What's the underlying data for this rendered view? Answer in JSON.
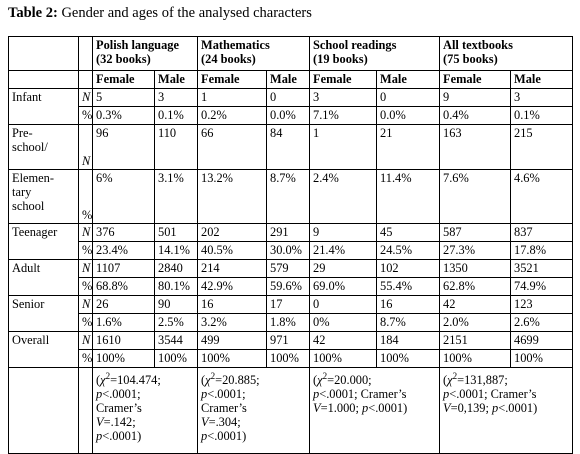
{
  "caption": {
    "label": "Table 2:",
    "text": " Gender and ages of the analysed characters"
  },
  "header": {
    "groups": [
      {
        "line1": "Polish language",
        "line2": "(32 books)"
      },
      {
        "line1": "Mathematics",
        "line2": "(24 books)"
      },
      {
        "line1": "School readings",
        "line2": "(19 books)"
      },
      {
        "line1": "All textbooks",
        "line2": "(75 books)"
      }
    ],
    "female": "Female",
    "male": "Male"
  },
  "rows": [
    {
      "label": "Infant",
      "n_mark": "N",
      "n": [
        "5",
        "3",
        "1",
        "0",
        "3",
        "0",
        "9",
        "3"
      ],
      "pct_mark": "%",
      "pct": [
        "0.3%",
        "0.1%",
        "0.2%",
        "0.0%",
        "7.1%",
        "0.0%",
        "0.4%",
        "0.1%"
      ]
    },
    {
      "label_a": "Pre-",
      "label_b": "school/",
      "label_c": "Elemen-",
      "label_d": "tary",
      "label_e": "school",
      "n_mark": "N",
      "n": [
        "96",
        "110",
        "66",
        "84",
        "1",
        "21",
        "163",
        "215"
      ],
      "pct_mark": "%",
      "pct": [
        "6%",
        "3.1%",
        "13.2%",
        "8.7%",
        "2.4%",
        "11.4%",
        "7.6%",
        "4.6%"
      ]
    },
    {
      "label": "Teenager",
      "n_mark": "N",
      "n": [
        "376",
        "501",
        "202",
        "291",
        "9",
        "45",
        "587",
        "837"
      ],
      "pct_mark": "%",
      "pct": [
        "23.4%",
        "14.1%",
        "40.5%",
        "30.0%",
        "21.4%",
        "24.5%",
        "27.3%",
        "17.8%"
      ]
    },
    {
      "label": "Adult",
      "n_mark": "N",
      "n": [
        "1107",
        "2840",
        "214",
        "579",
        "29",
        "102",
        "1350",
        "3521"
      ],
      "pct_mark": "%",
      "pct": [
        "68.8%",
        "80.1%",
        "42.9%",
        "59.6%",
        "69.0%",
        "55.4%",
        "62.8%",
        "74.9%"
      ]
    },
    {
      "label": "Senior",
      "n_mark": "N",
      "n": [
        "26",
        "90",
        "16",
        "17",
        "0",
        "16",
        "42",
        "123"
      ],
      "pct_mark": "%",
      "pct": [
        "1.6%",
        "2.5%",
        "3.2%",
        "1.8%",
        "0%",
        "8.7%",
        "2.0%",
        "2.6%"
      ]
    },
    {
      "label": "Overall",
      "n_mark": "N",
      "n": [
        "1610",
        "3544",
        "499",
        "971",
        "42",
        "184",
        "2151",
        "4699"
      ],
      "pct_mark": "%",
      "pct": [
        "100%",
        "100%",
        "100%",
        "100%",
        "100%",
        "100%",
        "100%",
        "100%"
      ]
    }
  ],
  "stats": [
    {
      "open": "(",
      "chi": "χ",
      "sq": "2",
      "val": "=104.474;",
      "p": "p",
      "p_val": "<.0001;",
      "cramer": "Cramer’s",
      "v": "V",
      "v_val": "=.142;",
      "p2": "p",
      "p2_val": "<.0001)"
    },
    {
      "open": "(",
      "chi": "χ",
      "sq": "2",
      "val": "=20.885;",
      "p": "p",
      "p_val": "<.0001;",
      "cramer": "Cramer’s",
      "v": "V",
      "v_val": "=.304;",
      "p2": "p",
      "p2_val": "<.0001)"
    },
    {
      "open": "(",
      "chi": "χ",
      "sq": "2",
      "val": "=20.000;",
      "p": "p",
      "p_val": "<.0001; Cramer’s",
      "v": "V",
      "v_val": "=1.000;",
      "p2": "p",
      "p2_val": "<.0001)"
    },
    {
      "open": "(",
      "chi": "χ",
      "sq": "2",
      "val": "=131,887;",
      "p": "p",
      "p_val": "<.0001; Cramer’s",
      "v": "V",
      "v_val": "=0,139;",
      "p2": "p",
      "p2_val": "<.0001)"
    }
  ]
}
